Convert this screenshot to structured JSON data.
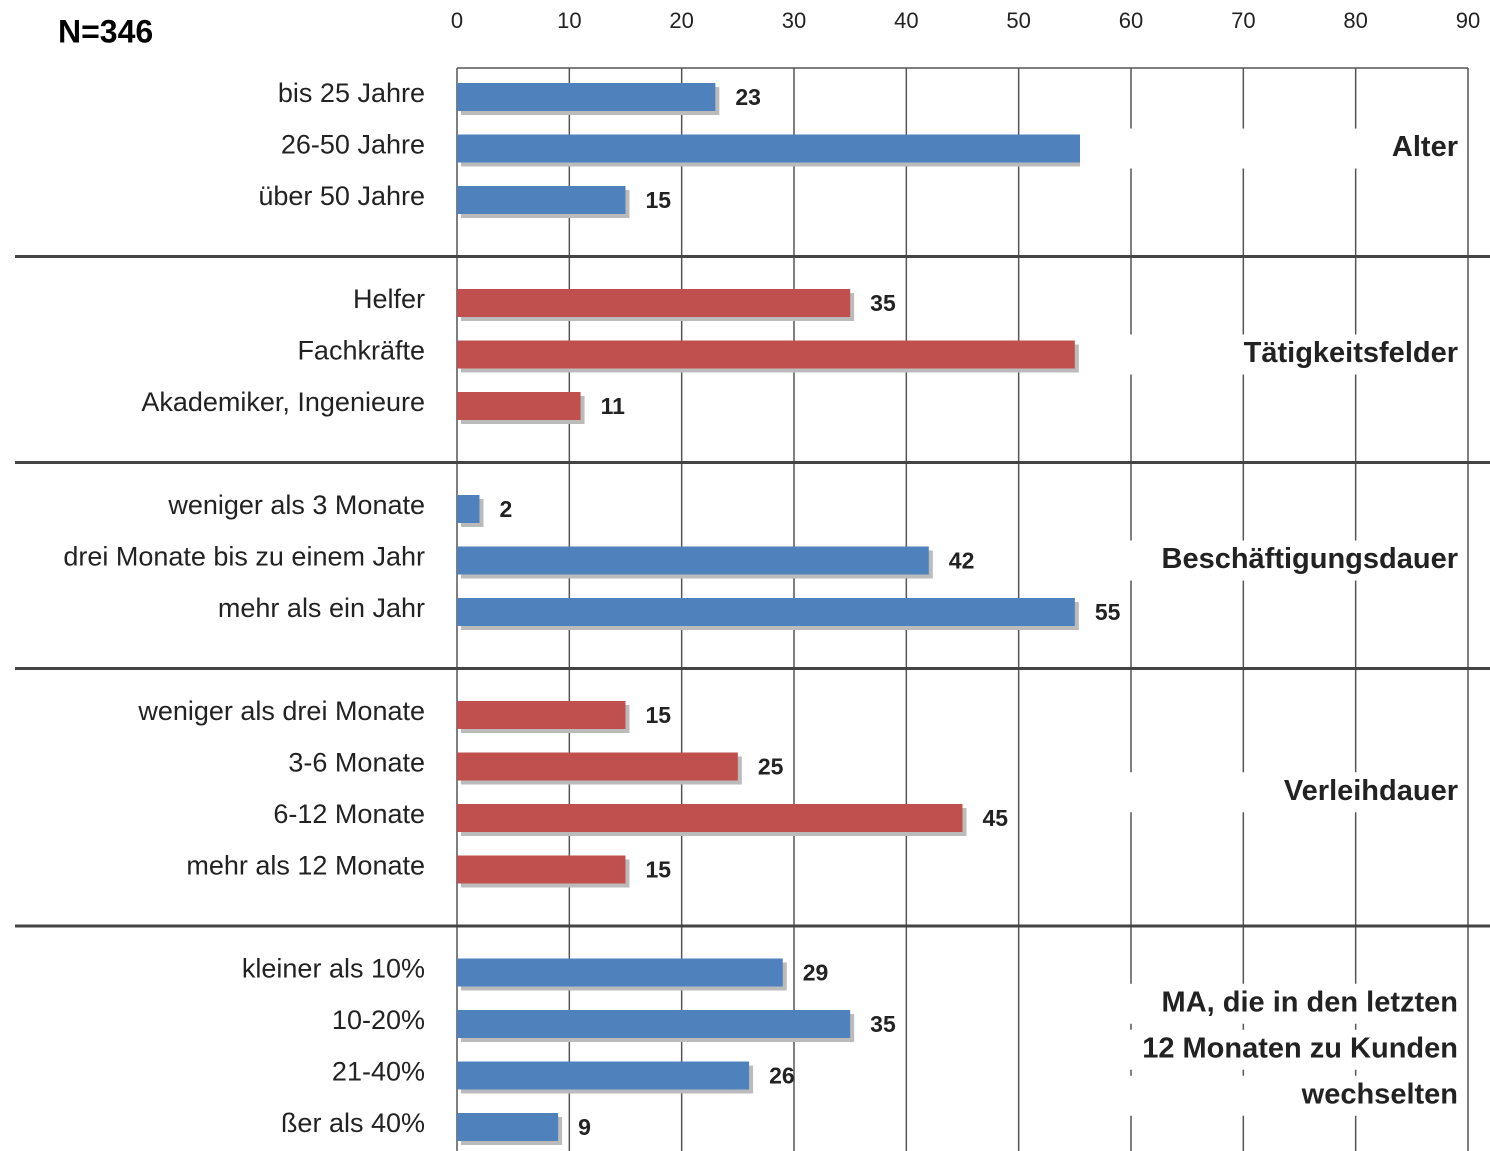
{
  "chart_data": {
    "type": "bar",
    "orientation": "horizontal",
    "annotation": "N=346",
    "xlim": [
      0,
      90
    ],
    "xticks": [
      0,
      10,
      20,
      30,
      40,
      50,
      60,
      70,
      80,
      90
    ],
    "grid": true,
    "groups": [
      {
        "label": [
          "Alter"
        ],
        "color": "#4f81bd",
        "categories": [
          "bis 25 Jahre",
          "26-50 Jahre",
          "über 50 Jahre"
        ],
        "values": [
          23,
          62,
          15
        ]
      },
      {
        "label": [
          "Tätigkeitsfelder"
        ],
        "color": "#c0504d",
        "categories": [
          "Helfer",
          "Fachkräfte",
          "Akademiker, Ingenieure"
        ],
        "values": [
          35,
          55,
          11
        ]
      },
      {
        "label": [
          "Beschäftigungsdauer"
        ],
        "color": "#4f81bd",
        "categories": [
          "weniger als 3 Monate",
          "drei Monate bis zu einem Jahr",
          "mehr als ein Jahr"
        ],
        "values": [
          2,
          42,
          55
        ]
      },
      {
        "label": [
          "Verleihdauer"
        ],
        "color": "#c0504d",
        "categories": [
          "weniger als drei Monate",
          "3-6 Monate",
          "6-12 Monate",
          "mehr als 12 Monate"
        ],
        "values": [
          15,
          25,
          45,
          15
        ]
      },
      {
        "label": [
          "MA, die in den letzten",
          "12 Monaten zu Kunden",
          "wechselten"
        ],
        "color": "#4f81bd",
        "categories": [
          "kleiner als 10%",
          "10-20%",
          "21-40%",
          "ßer als 40%"
        ],
        "values": [
          29,
          35,
          26,
          9
        ]
      }
    ]
  }
}
